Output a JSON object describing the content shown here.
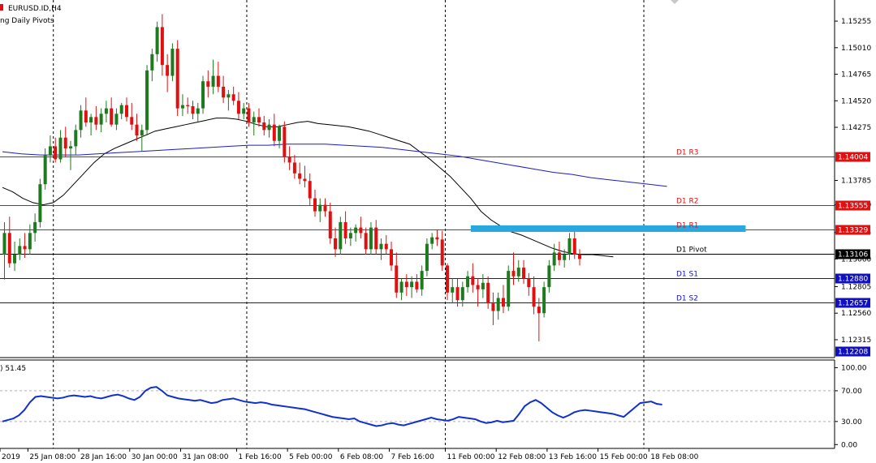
{
  "header": {
    "symbol_label": "EURUSD.ID,H4",
    "indicator_label": "ng Daily Pivots"
  },
  "sub_window": {
    "label": ") 51.45"
  },
  "colors": {
    "bull": "#1f7a1f",
    "bear": "#e01010",
    "ma_fast": "#000000",
    "ma_slow": "#1c1cc0",
    "resistance": "#e01010",
    "support": "#1010c0",
    "zone": "#29a8e0",
    "rsi": "#1030d0",
    "current_price_tag": "#000000"
  },
  "chart_data": {
    "type": "candlestick",
    "price_ylim": [
      1.1215,
      1.1545
    ],
    "price_ticks": [
      "1.15255",
      "1.15010",
      "1.14765",
      "1.14520",
      "1.14275",
      "1.13785",
      "1.13560",
      "1.13305",
      "1.13060",
      "1.12805",
      "1.12560",
      "1.12315"
    ],
    "price_tick_values": [
      1.15255,
      1.1501,
      1.14765,
      1.1452,
      1.14275,
      1.13785,
      1.1356,
      1.13305,
      1.1306,
      1.12805,
      1.1256,
      1.12315
    ],
    "x_labels": [
      "2019",
      "25 Jan 08:00",
      "28 Jan 16:00",
      "30 Jan 00:00",
      "31 Jan 08:00",
      "1 Feb 16:00",
      "5 Feb 00:00",
      "6 Feb 08:00",
      "7 Feb 16:00",
      "11 Feb 00:00",
      "12 Feb 08:00",
      "13 Feb 16:00",
      "15 Feb 00:00",
      "18 Feb 08:00"
    ],
    "x_label_index": [
      0,
      5,
      15,
      25,
      35,
      46,
      56,
      66,
      76,
      87,
      97,
      107,
      117,
      127
    ],
    "period_separators_index": [
      10,
      48,
      87,
      126
    ],
    "candles_ohlc": [
      [
        1.131,
        1.134,
        1.1287,
        1.133
      ],
      [
        1.133,
        1.1345,
        1.1298,
        1.1302
      ],
      [
        1.1302,
        1.1322,
        1.1295,
        1.131
      ],
      [
        1.131,
        1.1325,
        1.1305,
        1.1318
      ],
      [
        1.1318,
        1.133,
        1.1307,
        1.1315
      ],
      [
        1.1315,
        1.1338,
        1.131,
        1.133
      ],
      [
        1.133,
        1.1348,
        1.1322,
        1.134
      ],
      [
        1.134,
        1.138,
        1.1335,
        1.1375
      ],
      [
        1.1375,
        1.1408,
        1.137,
        1.1402
      ],
      [
        1.1402,
        1.142,
        1.1395,
        1.141
      ],
      [
        1.141,
        1.1418,
        1.1395,
        1.1398
      ],
      [
        1.1398,
        1.1425,
        1.1395,
        1.1418
      ],
      [
        1.1418,
        1.1428,
        1.14,
        1.1408
      ],
      [
        1.1408,
        1.1415,
        1.1388,
        1.141
      ],
      [
        1.141,
        1.143,
        1.1402,
        1.1425
      ],
      [
        1.1425,
        1.1448,
        1.1418,
        1.1443
      ],
      [
        1.1443,
        1.1455,
        1.1428,
        1.1432
      ],
      [
        1.1432,
        1.144,
        1.142,
        1.1437
      ],
      [
        1.1437,
        1.1447,
        1.1425,
        1.143
      ],
      [
        1.143,
        1.1445,
        1.1423,
        1.144
      ],
      [
        1.144,
        1.1452,
        1.1432,
        1.1445
      ],
      [
        1.1445,
        1.1455,
        1.1428,
        1.143
      ],
      [
        1.143,
        1.1445,
        1.1425,
        1.144
      ],
      [
        1.144,
        1.145,
        1.1435,
        1.1448
      ],
      [
        1.1448,
        1.1455,
        1.1433,
        1.1437
      ],
      [
        1.1437,
        1.145,
        1.1425,
        1.143
      ],
      [
        1.143,
        1.144,
        1.1415,
        1.142
      ],
      [
        1.142,
        1.143,
        1.1405,
        1.1425
      ],
      [
        1.1425,
        1.1485,
        1.142,
        1.148
      ],
      [
        1.148,
        1.15,
        1.147,
        1.1495
      ],
      [
        1.1495,
        1.1525,
        1.1488,
        1.152
      ],
      [
        1.152,
        1.1532,
        1.1475,
        1.1485
      ],
      [
        1.1485,
        1.1495,
        1.146,
        1.1475
      ],
      [
        1.1475,
        1.1505,
        1.147,
        1.15
      ],
      [
        1.15,
        1.1508,
        1.1438,
        1.1445
      ],
      [
        1.1445,
        1.1458,
        1.1438,
        1.1448
      ],
      [
        1.1448,
        1.1455,
        1.144,
        1.1447
      ],
      [
        1.1447,
        1.1452,
        1.1435,
        1.144
      ],
      [
        1.144,
        1.145,
        1.1433,
        1.1445
      ],
      [
        1.1445,
        1.1475,
        1.144,
        1.147
      ],
      [
        1.147,
        1.148,
        1.1455,
        1.1465
      ],
      [
        1.1465,
        1.149,
        1.1458,
        1.1475
      ],
      [
        1.1475,
        1.1488,
        1.146,
        1.1465
      ],
      [
        1.1465,
        1.1475,
        1.145,
        1.1455
      ],
      [
        1.1455,
        1.1462,
        1.1443,
        1.1458
      ],
      [
        1.1458,
        1.1465,
        1.1448,
        1.1452
      ],
      [
        1.1452,
        1.146,
        1.1435,
        1.144
      ],
      [
        1.144,
        1.145,
        1.1435,
        1.1445
      ],
      [
        1.1445,
        1.145,
        1.1428,
        1.1432
      ],
      [
        1.1432,
        1.1442,
        1.142,
        1.1437
      ],
      [
        1.1437,
        1.1445,
        1.1428,
        1.1432
      ],
      [
        1.1432,
        1.1438,
        1.142,
        1.1425
      ],
      [
        1.1425,
        1.1435,
        1.1418,
        1.143
      ],
      [
        1.143,
        1.144,
        1.141,
        1.1415
      ],
      [
        1.1415,
        1.143,
        1.1408,
        1.1428
      ],
      [
        1.1428,
        1.1433,
        1.1395,
        1.14
      ],
      [
        1.14,
        1.141,
        1.1388,
        1.1395
      ],
      [
        1.1395,
        1.1402,
        1.138,
        1.1385
      ],
      [
        1.1385,
        1.1395,
        1.1375,
        1.138
      ],
      [
        1.138,
        1.1392,
        1.1372,
        1.1378
      ],
      [
        1.1378,
        1.1385,
        1.1355,
        1.1362
      ],
      [
        1.1362,
        1.137,
        1.1345,
        1.135
      ],
      [
        1.135,
        1.1362,
        1.134,
        1.1356
      ],
      [
        1.1356,
        1.1362,
        1.1345,
        1.135
      ],
      [
        1.135,
        1.1358,
        1.132,
        1.1325
      ],
      [
        1.1325,
        1.1335,
        1.1308,
        1.1315
      ],
      [
        1.1315,
        1.1345,
        1.131,
        1.134
      ],
      [
        1.134,
        1.135,
        1.132,
        1.1325
      ],
      [
        1.1325,
        1.1335,
        1.1318,
        1.133
      ],
      [
        1.133,
        1.1338,
        1.1322,
        1.1335
      ],
      [
        1.1335,
        1.1345,
        1.1325,
        1.133
      ],
      [
        1.133,
        1.1335,
        1.131,
        1.1315
      ],
      [
        1.1315,
        1.134,
        1.131,
        1.1335
      ],
      [
        1.1335,
        1.1342,
        1.131,
        1.1315
      ],
      [
        1.1315,
        1.1325,
        1.1305,
        1.132
      ],
      [
        1.132,
        1.1328,
        1.131,
        1.1315
      ],
      [
        1.1315,
        1.1322,
        1.1295,
        1.13
      ],
      [
        1.13,
        1.1312,
        1.127,
        1.1275
      ],
      [
        1.1275,
        1.1288,
        1.1268,
        1.1285
      ],
      [
        1.1285,
        1.1292,
        1.1272,
        1.128
      ],
      [
        1.128,
        1.129,
        1.127,
        1.1285
      ],
      [
        1.1285,
        1.1292,
        1.1275,
        1.1278
      ],
      [
        1.1278,
        1.13,
        1.1272,
        1.1295
      ],
      [
        1.1295,
        1.1325,
        1.129,
        1.132
      ],
      [
        1.132,
        1.133,
        1.1315,
        1.1326
      ],
      [
        1.1326,
        1.1333,
        1.1318,
        1.1324
      ],
      [
        1.1324,
        1.1332,
        1.1295,
        1.13
      ],
      [
        1.13,
        1.1302,
        1.1268,
        1.1275
      ],
      [
        1.1275,
        1.1288,
        1.1265,
        1.128
      ],
      [
        1.128,
        1.1288,
        1.1262,
        1.1268
      ],
      [
        1.1268,
        1.1285,
        1.1262,
        1.128
      ],
      [
        1.128,
        1.1295,
        1.1275,
        1.129
      ],
      [
        1.129,
        1.1302,
        1.1275,
        1.1282
      ],
      [
        1.1282,
        1.1288,
        1.1262,
        1.1278
      ],
      [
        1.1278,
        1.1292,
        1.127,
        1.1284
      ],
      [
        1.1284,
        1.129,
        1.126,
        1.1265
      ],
      [
        1.1265,
        1.1275,
        1.1245,
        1.1258
      ],
      [
        1.1258,
        1.1275,
        1.125,
        1.127
      ],
      [
        1.127,
        1.1282,
        1.1256,
        1.1262
      ],
      [
        1.1262,
        1.13,
        1.1258,
        1.1295
      ],
      [
        1.1295,
        1.1312,
        1.1282,
        1.129
      ],
      [
        1.129,
        1.1305,
        1.1285,
        1.1298
      ],
      [
        1.1298,
        1.1305,
        1.1283,
        1.1288
      ],
      [
        1.1288,
        1.1293,
        1.1272,
        1.128
      ],
      [
        1.128,
        1.129,
        1.1255,
        1.1262
      ],
      [
        1.1262,
        1.127,
        1.123,
        1.1256
      ],
      [
        1.1256,
        1.1285,
        1.1252,
        1.128
      ],
      [
        1.128,
        1.1305,
        1.1275,
        1.13
      ],
      [
        1.13,
        1.132,
        1.1295,
        1.1312
      ],
      [
        1.1312,
        1.1322,
        1.13,
        1.1305
      ],
      [
        1.1305,
        1.1315,
        1.1298,
        1.131
      ],
      [
        1.131,
        1.133,
        1.1305,
        1.1325
      ],
      [
        1.1325,
        1.1332,
        1.1306,
        1.131
      ],
      [
        1.131,
        1.1315,
        1.13,
        1.1306
      ]
    ],
    "ma_fast": [
      1.1372,
      1.1368,
      1.1362,
      1.1358,
      1.1356,
      1.1358,
      1.1365,
      1.1375,
      1.1385,
      1.1395,
      1.1403,
      1.1408,
      1.1412,
      1.1416,
      1.142,
      1.1424,
      1.1426,
      1.1428,
      1.143,
      1.1432,
      1.1434,
      1.1436,
      1.1436,
      1.1435,
      1.1433,
      1.143,
      1.1428,
      1.1428,
      1.143,
      1.1432,
      1.1433,
      1.1431,
      1.143,
      1.1429,
      1.1428,
      1.1426,
      1.1424,
      1.1421,
      1.1418,
      1.1415,
      1.1412,
      1.1405,
      1.1398,
      1.139,
      1.1382,
      1.1372,
      1.1362,
      1.135,
      1.1342,
      1.1336,
      1.1331,
      1.1328,
      1.1324,
      1.132,
      1.1316,
      1.1313,
      1.1311,
      1.131,
      1.131,
      1.1309,
      1.1308
    ],
    "ma_fast_start_index": 0,
    "ma_slow": [
      1.1405,
      1.1403,
      1.1402,
      1.1402,
      1.1402,
      1.1403,
      1.1404,
      1.1405,
      1.1406,
      1.1407,
      1.1408,
      1.1409,
      1.141,
      1.1411,
      1.1411,
      1.1412,
      1.1412,
      1.1412,
      1.1411,
      1.141,
      1.1409,
      1.1407,
      1.1405,
      1.1403,
      1.1401,
      1.1398,
      1.1395,
      1.1392,
      1.1389,
      1.1386,
      1.1384,
      1.1381,
      1.1379,
      1.1377,
      1.1375,
      1.1373
    ],
    "pivot_levels": [
      {
        "name": "D1 R3",
        "value": 1.14004,
        "label": "1.14004",
        "color": "#e01010"
      },
      {
        "name": "D1 R2",
        "value": 1.13555,
        "label": "1.13555",
        "color": "#e01010"
      },
      {
        "name": "D1 R1",
        "value": 1.13329,
        "label": "1.13329",
        "color": "#e01010"
      },
      {
        "name": "D1 Pivot",
        "value": 1.13106,
        "label": "1.13106",
        "color": "#000000"
      },
      {
        "name": "D1 S1",
        "value": 1.1288,
        "label": "1.12880",
        "color": "#1010c0"
      },
      {
        "name": "D1 S2",
        "value": 1.12657,
        "label": "1.12657",
        "color": "#1010c0"
      }
    ],
    "bottom_price_label": "1.12208",
    "bottom_price_value": 1.12208,
    "zone": {
      "start_index": 92,
      "end_index": 146,
      "value": 1.1334
    },
    "rsi_ylim": [
      -5,
      110
    ],
    "rsi_ticks": [
      "100.00",
      "70.00",
      "30.00",
      "0.00"
    ],
    "rsi_tick_values": [
      100,
      70,
      30,
      0
    ],
    "rsi_current": 51.45,
    "rsi": [
      30,
      32,
      34,
      38,
      45,
      55,
      62,
      63,
      62,
      61,
      60,
      61,
      63,
      64,
      63,
      62,
      63,
      61,
      60,
      62,
      64,
      65,
      63,
      60,
      58,
      62,
      70,
      74,
      75,
      70,
      64,
      62,
      60,
      59,
      58,
      57,
      58,
      56,
      54,
      55,
      58,
      59,
      60,
      58,
      56,
      55,
      54,
      55,
      54,
      52,
      51,
      50,
      49,
      48,
      47,
      46,
      44,
      42,
      40,
      38,
      36,
      35,
      34,
      33,
      34,
      30,
      28,
      26,
      24,
      25,
      27,
      28,
      26,
      25,
      27,
      29,
      31,
      33,
      35,
      33,
      32,
      31,
      33,
      36,
      35,
      34,
      33,
      30,
      28,
      29,
      31,
      29,
      30,
      31,
      40,
      50,
      55,
      58,
      54,
      48,
      42,
      38,
      35,
      38,
      42,
      44,
      45,
      44,
      43,
      42,
      41,
      40,
      38,
      36,
      42,
      48,
      54,
      55,
      56,
      53,
      52
    ]
  }
}
